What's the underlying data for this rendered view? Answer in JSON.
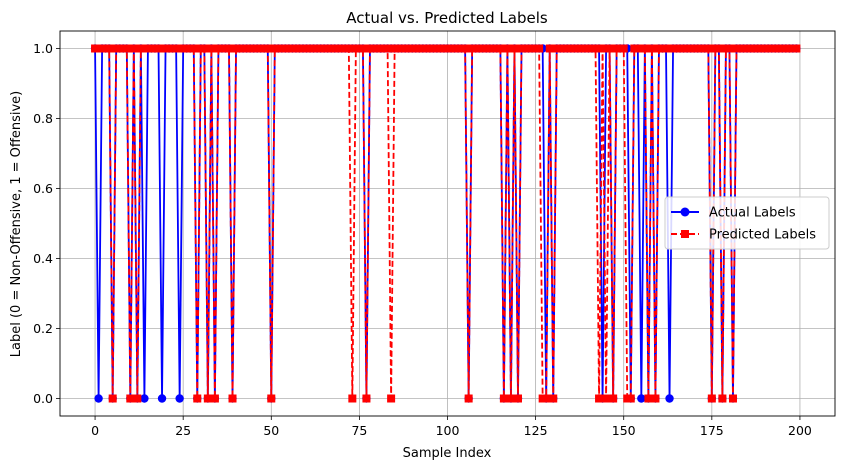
{
  "chart_data": {
    "type": "line",
    "title": "Actual vs. Predicted Labels",
    "xlabel": "Sample Index",
    "ylabel": "Label (0 = Non-Offensive, 1 = Offensive)",
    "xlim": [
      -9.95,
      209.95
    ],
    "ylim": [
      -0.05,
      1.05
    ],
    "xticks": [
      0,
      25,
      50,
      75,
      100,
      125,
      150,
      175,
      200
    ],
    "yticks": [
      "0.0",
      "0.2",
      "0.4",
      "0.6",
      "0.8",
      "1.0"
    ],
    "grid": true,
    "legend_position": "center-right",
    "n_samples": 200,
    "series": [
      {
        "name": "Actual Labels",
        "color": "#0000ff",
        "marker": "circle",
        "linestyle": "solid",
        "zero_indices": [
          1,
          5,
          10,
          12,
          14,
          19,
          24,
          29,
          32,
          34,
          39,
          50,
          77,
          106,
          116,
          118,
          120,
          128,
          130,
          144,
          147,
          152,
          155,
          157,
          159,
          163,
          175,
          178,
          181
        ]
      },
      {
        "name": "Predicted Labels",
        "color": "#ff0000",
        "marker": "square",
        "linestyle": "dashed",
        "zero_indices": [
          5,
          10,
          12,
          29,
          32,
          34,
          39,
          50,
          73,
          77,
          84,
          106,
          116,
          118,
          120,
          127,
          128,
          130,
          143,
          145,
          147,
          151,
          152,
          157,
          159,
          175,
          178,
          181
        ]
      }
    ]
  }
}
